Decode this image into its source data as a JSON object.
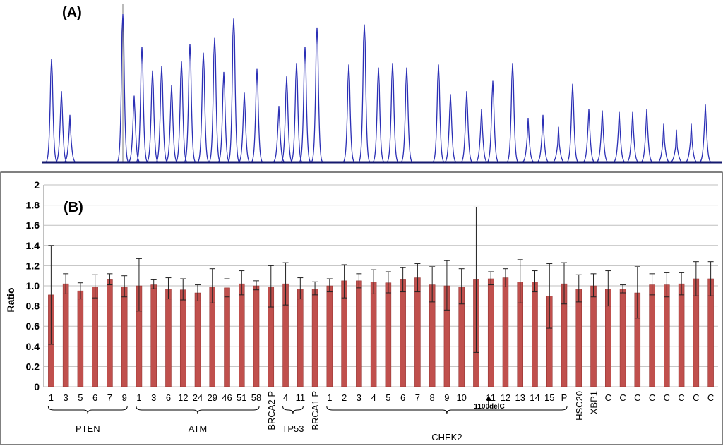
{
  "panel_a": {
    "label": "(A)"
  },
  "panel_b": {
    "label": "(B)"
  },
  "annotation": {
    "text": "1100delC"
  },
  "colors": {
    "trace": "#2b2fb5",
    "baseline": "#14196e",
    "bar": "#c0504d",
    "bar_edge": "#8c2a28",
    "grid": "#bfbfbf"
  },
  "chart_data": [
    {
      "type": "line",
      "panel": "A",
      "title": "",
      "xlabel": "",
      "ylabel": "",
      "peak_heights_relative": [
        0.7,
        0.48,
        0.32,
        1.0,
        0.45,
        0.78,
        0.62,
        0.65,
        0.52,
        0.68,
        0.8,
        0.74,
        0.84,
        0.61,
        0.97,
        0.47,
        0.63,
        0.38,
        0.58,
        0.67,
        0.78,
        0.91,
        0.66,
        0.93,
        0.64,
        0.67,
        0.64,
        0.66,
        0.46,
        0.48,
        0.36,
        0.55,
        0.67,
        0.3,
        0.32,
        0.24,
        0.53,
        0.36,
        0.35,
        0.34,
        0.34,
        0.36,
        0.26,
        0.22,
        0.26,
        0.39
      ]
    },
    {
      "type": "bar",
      "panel": "B",
      "title": "",
      "xlabel": "",
      "ylabel": "Ratio",
      "ylim": [
        0,
        2
      ],
      "yticks": [
        "0",
        "0.2",
        "0.4",
        "0.6",
        "0.8",
        "1.0",
        "1.2",
        "1.4",
        "1.6",
        "1.8",
        "2"
      ],
      "grid": true,
      "categories": [
        "1",
        "3",
        "5",
        "6",
        "7",
        "9",
        "1",
        "3",
        "6",
        "12",
        "24",
        "29",
        "46",
        "51",
        "58",
        "BRCA2 P",
        "4",
        "11",
        "BRCA1 P",
        "1",
        "2",
        "3",
        "4",
        "5",
        "6",
        "7",
        "8",
        "9",
        "10",
        "",
        "11",
        "12",
        "13",
        "14",
        "15",
        "P",
        "HSC20",
        "XBP1",
        "C",
        "C",
        "C",
        "C",
        "C",
        "C",
        "C",
        "C"
      ],
      "values": [
        0.91,
        1.02,
        0.95,
        0.99,
        1.06,
        0.99,
        1.0,
        1.01,
        0.97,
        0.96,
        0.93,
        0.99,
        0.98,
        1.02,
        1.0,
        0.99,
        1.02,
        0.97,
        0.97,
        1.0,
        1.05,
        1.05,
        1.04,
        1.03,
        1.06,
        1.08,
        1.01,
        1.0,
        0.99,
        1.06,
        1.07,
        1.08,
        1.04,
        1.04,
        0.9,
        1.02,
        0.97,
        1.0,
        0.97,
        0.97,
        0.93,
        1.01,
        1.01,
        1.02,
        1.07,
        1.07
      ],
      "err_hi": [
        1.4,
        1.12,
        1.03,
        1.11,
        1.12,
        1.1,
        1.27,
        1.06,
        1.08,
        1.07,
        1.01,
        1.17,
        1.07,
        1.15,
        1.05,
        1.2,
        1.23,
        1.08,
        1.04,
        1.07,
        1.21,
        1.12,
        1.16,
        1.14,
        1.18,
        1.22,
        1.19,
        1.25,
        1.17,
        1.78,
        1.14,
        1.17,
        1.26,
        1.15,
        1.22,
        1.23,
        1.11,
        1.12,
        1.15,
        1.01,
        1.19,
        1.12,
        1.13,
        1.13,
        1.24,
        1.24
      ],
      "err_lo": [
        0.42,
        0.92,
        0.87,
        0.88,
        1.01,
        0.89,
        0.75,
        0.97,
        0.87,
        0.86,
        0.85,
        0.83,
        0.89,
        0.91,
        0.96,
        0.79,
        0.81,
        0.87,
        0.91,
        0.94,
        0.88,
        0.98,
        0.92,
        0.93,
        0.94,
        0.94,
        0.84,
        0.76,
        0.82,
        0.34,
        1.01,
        0.99,
        0.83,
        0.94,
        0.58,
        0.82,
        0.84,
        0.89,
        0.8,
        0.93,
        0.68,
        0.91,
        0.89,
        0.91,
        0.9,
        0.9
      ],
      "groups": [
        {
          "name": "PTEN",
          "from": 0,
          "to": 5
        },
        {
          "name": "ATM",
          "from": 6,
          "to": 14
        },
        {
          "name": "TP53",
          "from": 16,
          "to": 17
        },
        {
          "name": "CHEK2",
          "from": 19,
          "to": 35
        }
      ],
      "vertical_labels": [
        "BRCA2 P",
        "BRCA1 P",
        "HSC20",
        "XBP1"
      ]
    }
  ]
}
